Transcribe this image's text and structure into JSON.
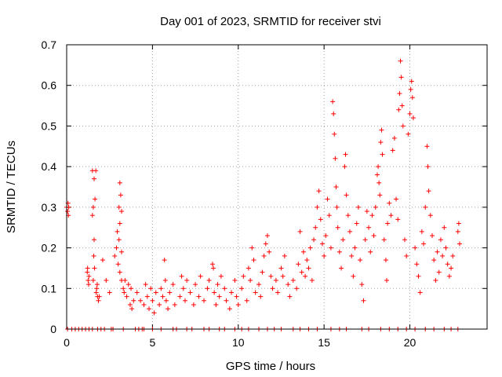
{
  "chart_data": {
    "type": "scatter",
    "title": "Day 001 of 2023, SRMTID for receiver stvi",
    "xlabel": "GPS time / hours",
    "ylabel": "SRMTID / TECUs",
    "xlim": [
      0,
      24.5
    ],
    "ylim": [
      0,
      0.7
    ],
    "x_ticks": [
      0,
      5,
      10,
      15,
      20
    ],
    "x_tick_labels": [
      "0",
      "5",
      "10",
      "15",
      "20"
    ],
    "y_ticks": [
      0,
      0.1,
      0.2,
      0.3,
      0.4,
      0.5,
      0.6,
      0.7
    ],
    "y_tick_labels": [
      "0",
      "0.1",
      "0.2",
      "0.3",
      "0.4",
      "0.5",
      "0.6",
      "0.7"
    ],
    "grid": true,
    "marker": "+",
    "color": "#ff0000",
    "series": [
      {
        "name": "SRMTID",
        "points": [
          [
            0.0,
            0.3
          ],
          [
            0.05,
            0.29
          ],
          [
            0.1,
            0.28
          ],
          [
            0.08,
            0.31
          ],
          [
            0.12,
            0.3
          ],
          [
            1.2,
            0.14
          ],
          [
            1.25,
            0.12
          ],
          [
            1.3,
            0.13
          ],
          [
            1.22,
            0.15
          ],
          [
            1.28,
            0.11
          ],
          [
            1.5,
            0.39
          ],
          [
            1.6,
            0.37
          ],
          [
            1.55,
            0.3
          ],
          [
            1.65,
            0.32
          ],
          [
            1.7,
            0.39
          ],
          [
            1.5,
            0.28
          ],
          [
            1.6,
            0.22
          ],
          [
            1.58,
            0.18
          ],
          [
            1.62,
            0.15
          ],
          [
            1.55,
            0.12
          ],
          [
            1.75,
            0.1
          ],
          [
            1.8,
            0.08
          ],
          [
            1.85,
            0.07
          ],
          [
            1.72,
            0.09
          ],
          [
            1.78,
            0.11
          ],
          [
            1.9,
            0.08
          ],
          [
            2.1,
            0.17
          ],
          [
            2.3,
            0.12
          ],
          [
            2.5,
            0.09
          ],
          [
            2.8,
            0.18
          ],
          [
            2.9,
            0.2
          ],
          [
            2.95,
            0.24
          ],
          [
            3.1,
            0.36
          ],
          [
            3.15,
            0.33
          ],
          [
            3.05,
            0.3
          ],
          [
            3.2,
            0.29
          ],
          [
            3.1,
            0.26
          ],
          [
            3.05,
            0.22
          ],
          [
            3.2,
            0.19
          ],
          [
            3.0,
            0.16
          ],
          [
            3.1,
            0.14
          ],
          [
            3.2,
            0.12
          ],
          [
            3.3,
            0.1
          ],
          [
            3.4,
            0.12
          ],
          [
            3.35,
            0.09
          ],
          [
            3.5,
            0.08
          ],
          [
            3.6,
            0.11
          ],
          [
            3.7,
            0.06
          ],
          [
            3.8,
            0.05
          ],
          [
            3.9,
            0.07
          ],
          [
            3.75,
            0.1
          ],
          [
            4.1,
            0.09
          ],
          [
            4.3,
            0.07
          ],
          [
            4.5,
            0.06
          ],
          [
            4.6,
            0.11
          ],
          [
            4.7,
            0.08
          ],
          [
            4.8,
            0.05
          ],
          [
            4.9,
            0.1
          ],
          [
            5.0,
            0.07
          ],
          [
            5.1,
            0.04
          ],
          [
            5.2,
            0.09
          ],
          [
            5.4,
            0.06
          ],
          [
            5.5,
            0.1
          ],
          [
            5.6,
            0.08
          ],
          [
            5.7,
            0.17
          ],
          [
            5.75,
            0.12
          ],
          [
            5.8,
            0.07
          ],
          [
            5.9,
            0.05
          ],
          [
            6.0,
            0.09
          ],
          [
            6.2,
            0.11
          ],
          [
            6.3,
            0.06
          ],
          [
            6.6,
            0.08
          ],
          [
            6.7,
            0.13
          ],
          [
            6.8,
            0.1
          ],
          [
            6.9,
            0.07
          ],
          [
            7.0,
            0.12
          ],
          [
            7.2,
            0.09
          ],
          [
            7.4,
            0.06
          ],
          [
            7.5,
            0.11
          ],
          [
            7.7,
            0.08
          ],
          [
            7.8,
            0.13
          ],
          [
            8.0,
            0.07
          ],
          [
            8.2,
            0.1
          ],
          [
            8.3,
            0.12
          ],
          [
            8.5,
            0.16
          ],
          [
            8.55,
            0.15
          ],
          [
            8.6,
            0.09
          ],
          [
            8.7,
            0.06
          ],
          [
            8.8,
            0.11
          ],
          [
            8.9,
            0.08
          ],
          [
            9.0,
            0.13
          ],
          [
            9.2,
            0.1
          ],
          [
            9.3,
            0.07
          ],
          [
            9.5,
            0.05
          ],
          [
            9.6,
            0.09
          ],
          [
            9.8,
            0.12
          ],
          [
            9.9,
            0.08
          ],
          [
            10.0,
            0.06
          ],
          [
            10.2,
            0.1
          ],
          [
            10.3,
            0.13
          ],
          [
            10.5,
            0.07
          ],
          [
            10.6,
            0.15
          ],
          [
            10.7,
            0.12
          ],
          [
            10.8,
            0.2
          ],
          [
            10.9,
            0.17
          ],
          [
            11.0,
            0.09
          ],
          [
            11.2,
            0.11
          ],
          [
            11.3,
            0.08
          ],
          [
            11.4,
            0.14
          ],
          [
            11.5,
            0.18
          ],
          [
            11.6,
            0.21
          ],
          [
            11.7,
            0.23
          ],
          [
            11.8,
            0.19
          ],
          [
            11.9,
            0.13
          ],
          [
            12.0,
            0.1
          ],
          [
            12.2,
            0.12
          ],
          [
            12.3,
            0.09
          ],
          [
            12.5,
            0.15
          ],
          [
            12.6,
            0.13
          ],
          [
            12.7,
            0.18
          ],
          [
            12.9,
            0.11
          ],
          [
            13.0,
            0.08
          ],
          [
            13.2,
            0.12
          ],
          [
            13.4,
            0.1
          ],
          [
            13.5,
            0.16
          ],
          [
            13.6,
            0.24
          ],
          [
            13.7,
            0.14
          ],
          [
            13.8,
            0.19
          ],
          [
            13.9,
            0.13
          ],
          [
            14.0,
            0.17
          ],
          [
            14.1,
            0.15
          ],
          [
            14.2,
            0.2
          ],
          [
            14.3,
            0.12
          ],
          [
            14.4,
            0.22
          ],
          [
            14.5,
            0.25
          ],
          [
            14.6,
            0.3
          ],
          [
            14.7,
            0.34
          ],
          [
            14.8,
            0.27
          ],
          [
            14.9,
            0.21
          ],
          [
            15.0,
            0.18
          ],
          [
            15.1,
            0.23
          ],
          [
            15.2,
            0.32
          ],
          [
            15.3,
            0.28
          ],
          [
            15.4,
            0.2
          ],
          [
            15.5,
            0.56
          ],
          [
            15.55,
            0.53
          ],
          [
            15.6,
            0.48
          ],
          [
            15.65,
            0.42
          ],
          [
            15.7,
            0.35
          ],
          [
            15.75,
            0.3
          ],
          [
            15.8,
            0.25
          ],
          [
            15.9,
            0.19
          ],
          [
            16.0,
            0.15
          ],
          [
            16.1,
            0.22
          ],
          [
            16.2,
            0.4
          ],
          [
            16.25,
            0.43
          ],
          [
            16.3,
            0.33
          ],
          [
            16.4,
            0.28
          ],
          [
            16.5,
            0.24
          ],
          [
            16.6,
            0.18
          ],
          [
            16.7,
            0.13
          ],
          [
            16.8,
            0.2
          ],
          [
            16.9,
            0.26
          ],
          [
            17.0,
            0.3
          ],
          [
            17.1,
            0.17
          ],
          [
            17.2,
            0.11
          ],
          [
            17.3,
            0.07
          ],
          [
            17.4,
            0.22
          ],
          [
            17.5,
            0.29
          ],
          [
            17.6,
            0.25
          ],
          [
            17.7,
            0.19
          ],
          [
            17.8,
            0.28
          ],
          [
            17.9,
            0.23
          ],
          [
            18.0,
            0.3
          ],
          [
            18.1,
            0.38
          ],
          [
            18.15,
            0.4
          ],
          [
            18.2,
            0.36
          ],
          [
            18.25,
            0.33
          ],
          [
            18.3,
            0.46
          ],
          [
            18.35,
            0.49
          ],
          [
            18.4,
            0.43
          ],
          [
            18.5,
            0.22
          ],
          [
            18.6,
            0.17
          ],
          [
            18.65,
            0.12
          ],
          [
            18.7,
            0.26
          ],
          [
            18.8,
            0.31
          ],
          [
            18.9,
            0.28
          ],
          [
            19.0,
            0.44
          ],
          [
            19.1,
            0.47
          ],
          [
            19.2,
            0.32
          ],
          [
            19.3,
            0.27
          ],
          [
            19.35,
            0.54
          ],
          [
            19.4,
            0.58
          ],
          [
            19.45,
            0.66
          ],
          [
            19.5,
            0.62
          ],
          [
            19.55,
            0.55
          ],
          [
            19.6,
            0.5
          ],
          [
            19.7,
            0.22
          ],
          [
            19.8,
            0.18
          ],
          [
            19.9,
            0.48
          ],
          [
            20.0,
            0.53
          ],
          [
            20.05,
            0.59
          ],
          [
            20.1,
            0.61
          ],
          [
            20.15,
            0.57
          ],
          [
            20.2,
            0.52
          ],
          [
            20.3,
            0.2
          ],
          [
            20.4,
            0.16
          ],
          [
            20.5,
            0.13
          ],
          [
            20.6,
            0.09
          ],
          [
            20.7,
            0.24
          ],
          [
            20.8,
            0.21
          ],
          [
            20.9,
            0.3
          ],
          [
            21.0,
            0.45
          ],
          [
            21.05,
            0.4
          ],
          [
            21.1,
            0.34
          ],
          [
            21.2,
            0.28
          ],
          [
            21.3,
            0.23
          ],
          [
            21.4,
            0.17
          ],
          [
            21.5,
            0.12
          ],
          [
            21.6,
            0.19
          ],
          [
            21.7,
            0.14
          ],
          [
            21.8,
            0.22
          ],
          [
            21.9,
            0.18
          ],
          [
            22.0,
            0.25
          ],
          [
            22.1,
            0.2
          ],
          [
            22.2,
            0.16
          ],
          [
            22.3,
            0.13
          ],
          [
            22.4,
            0.15
          ],
          [
            22.5,
            0.18
          ],
          [
            22.8,
            0.24
          ],
          [
            22.85,
            0.26
          ],
          [
            22.9,
            0.21
          ],
          [
            0.05,
            0
          ],
          [
            0.3,
            0
          ],
          [
            0.5,
            0
          ],
          [
            0.7,
            0
          ],
          [
            0.9,
            0
          ],
          [
            1.1,
            0
          ],
          [
            1.3,
            0
          ],
          [
            1.5,
            0
          ],
          [
            1.8,
            0
          ],
          [
            2.0,
            0
          ],
          [
            2.2,
            0
          ],
          [
            2.6,
            0
          ],
          [
            2.7,
            0
          ],
          [
            3.3,
            0
          ],
          [
            4.0,
            0
          ],
          [
            4.2,
            0
          ],
          [
            4.4,
            0
          ],
          [
            4.5,
            0
          ],
          [
            5.0,
            0
          ],
          [
            5.5,
            0
          ],
          [
            6.2,
            0
          ],
          [
            6.4,
            0
          ],
          [
            7.0,
            0
          ],
          [
            7.3,
            0
          ],
          [
            8.0,
            0
          ],
          [
            8.3,
            0
          ],
          [
            8.9,
            0
          ],
          [
            9.2,
            0
          ],
          [
            9.8,
            0
          ],
          [
            10.2,
            0
          ],
          [
            10.6,
            0
          ],
          [
            11.2,
            0
          ],
          [
            11.7,
            0
          ],
          [
            12.1,
            0
          ],
          [
            12.5,
            0
          ],
          [
            13.2,
            0
          ],
          [
            13.6,
            0
          ],
          [
            14.1,
            0
          ],
          [
            14.6,
            0
          ],
          [
            15.4,
            0
          ],
          [
            15.9,
            0
          ],
          [
            16.3,
            0
          ],
          [
            17.2,
            0
          ],
          [
            17.6,
            0
          ],
          [
            18.3,
            0
          ],
          [
            18.8,
            0
          ],
          [
            19.3,
            0
          ],
          [
            19.8,
            0
          ],
          [
            20.3,
            0
          ],
          [
            20.9,
            0
          ],
          [
            21.4,
            0
          ],
          [
            22.0,
            0
          ],
          [
            22.4,
            0
          ],
          [
            22.8,
            0
          ]
        ]
      }
    ]
  }
}
